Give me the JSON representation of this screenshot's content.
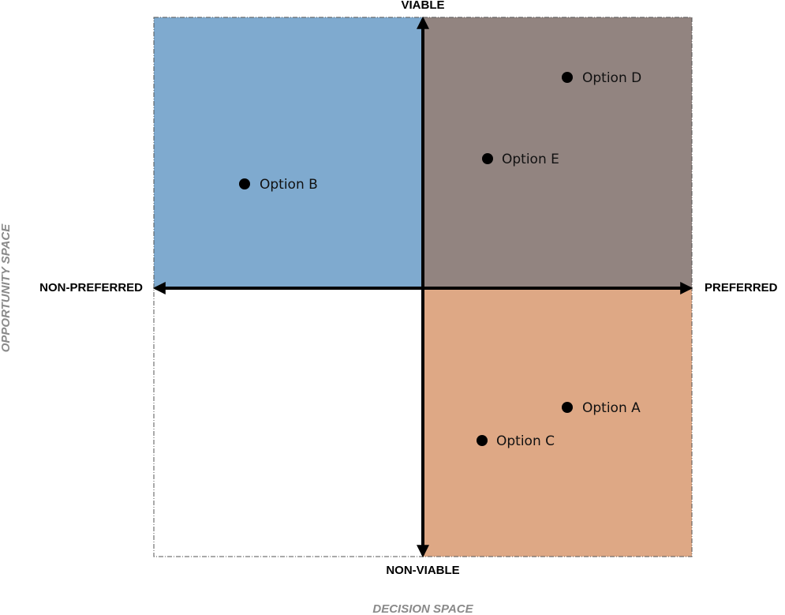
{
  "axes": {
    "top": "VIABLE",
    "bottom": "NON-VIABLE",
    "left": "NON-PREFERRED",
    "right": "PREFERRED",
    "vertical_title": "OPPORTUNITY SPACE",
    "horizontal_title": "DECISION SPACE"
  },
  "options": [
    {
      "label": "Option D"
    },
    {
      "label": "Option E"
    },
    {
      "label": "Option B"
    },
    {
      "label": "Option A"
    },
    {
      "label": "Option C"
    }
  ]
}
